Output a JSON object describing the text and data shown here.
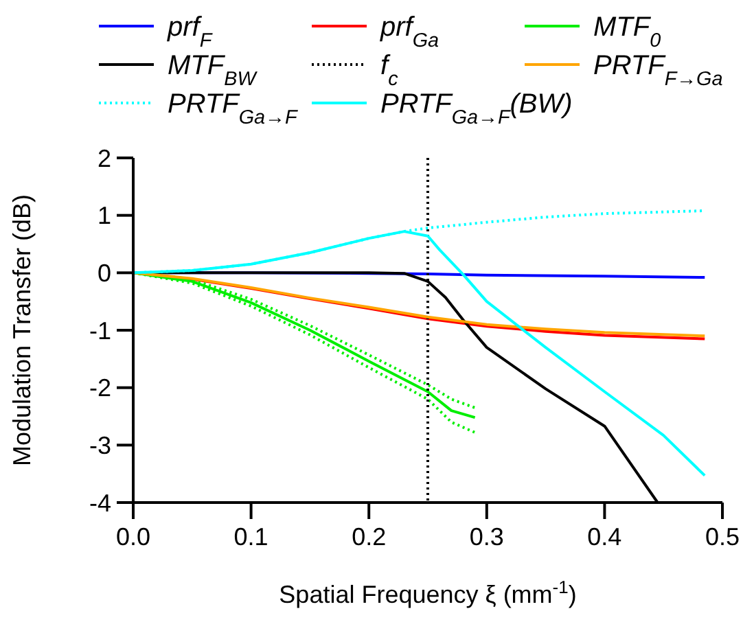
{
  "chart_data": {
    "type": "line",
    "xlabel": "Spatial Frequency ξ (mm$^{-1}$)",
    "ylabel": "Modulation Transfer (dB)",
    "xlim": [
      0,
      0.5
    ],
    "ylim": [
      -4,
      2
    ],
    "xticks": [
      {
        "value": 0,
        "label": "0.0"
      },
      0.1,
      0.2,
      0.3,
      0.4,
      0.5
    ],
    "yticks": [
      -4,
      -3,
      -2,
      -1,
      0,
      1,
      2
    ],
    "legend": "top",
    "grid": false,
    "series": [
      {
        "name": "prf$_{F}$",
        "color": "#0000ff",
        "x": [
          0,
          0.1,
          0.2,
          0.25,
          0.3,
          0.4,
          0.485
        ],
        "values": [
          0,
          0,
          -0.01,
          -0.02,
          -0.04,
          -0.06,
          -0.08
        ]
      },
      {
        "name": "prf$_{Ga}$",
        "color": "#ff0000",
        "x": [
          0,
          0.05,
          0.1,
          0.15,
          0.2,
          0.25,
          0.3,
          0.35,
          0.4,
          0.485
        ],
        "values": [
          0,
          -0.11,
          -0.27,
          -0.45,
          -0.62,
          -0.8,
          -0.93,
          -1.02,
          -1.09,
          -1.15
        ]
      },
      {
        "name": "MTF$_{0}$",
        "color": "#00ee00",
        "x": [
          0,
          0.05,
          0.1,
          0.15,
          0.2,
          0.25,
          0.27,
          0.29
        ],
        "values": [
          0,
          -0.15,
          -0.52,
          -1.0,
          -1.54,
          -2.07,
          -2.4,
          -2.52
        ]
      },
      {
        "color": "#00ee00",
        "line_style": "dotted",
        "x": [
          0,
          0.05,
          0.1,
          0.15,
          0.2,
          0.25,
          0.27,
          0.29
        ],
        "values": [
          0,
          -0.18,
          -0.58,
          -1.08,
          -1.65,
          -2.2,
          -2.6,
          -2.78
        ]
      },
      {
        "color": "#00ee00",
        "line_style": "dotted",
        "x": [
          0,
          0.05,
          0.1,
          0.15,
          0.2,
          0.25,
          0.27,
          0.29
        ],
        "values": [
          0,
          -0.12,
          -0.46,
          -0.92,
          -1.43,
          -1.95,
          -2.2,
          -2.35
        ]
      },
      {
        "name": "MTF$_{BW}$",
        "color": "#000000",
        "x": [
          0,
          0.1,
          0.2,
          0.23,
          0.25,
          0.265,
          0.28,
          0.3,
          0.35,
          0.4,
          0.445
        ],
        "values": [
          0,
          0,
          0,
          -0.01,
          -0.15,
          -0.43,
          -0.82,
          -1.3,
          -2.02,
          -2.67,
          -4
        ]
      },
      {
        "name": "f$_{c}$",
        "color": "#000000",
        "line_style": "dotted",
        "x": [
          0.25,
          0.25
        ],
        "values": [
          2,
          -4
        ]
      },
      {
        "name": "PRTF$_{F→Ga}$",
        "color": "#ffa500",
        "x": [
          0,
          0.05,
          0.1,
          0.15,
          0.2,
          0.25,
          0.3,
          0.35,
          0.4,
          0.485
        ],
        "values": [
          0,
          -0.1,
          -0.26,
          -0.44,
          -0.6,
          -0.77,
          -0.9,
          -0.98,
          -1.04,
          -1.1
        ]
      },
      {
        "name": "PRTF$_{Ga→F}$",
        "color": "#00ffff",
        "line_style": "dotted",
        "x": [
          0,
          0.05,
          0.1,
          0.15,
          0.2,
          0.23,
          0.25,
          0.3,
          0.35,
          0.4,
          0.485
        ],
        "values": [
          0,
          0.04,
          0.15,
          0.35,
          0.6,
          0.72,
          0.78,
          0.88,
          0.97,
          1.03,
          1.08
        ]
      },
      {
        "name": "PRTF$_{Ga→F}$(BW)",
        "color": "#00ffff",
        "x": [
          0,
          0.05,
          0.1,
          0.15,
          0.2,
          0.23,
          0.25,
          0.26,
          0.28,
          0.3,
          0.35,
          0.4,
          0.45,
          0.485
        ],
        "values": [
          0,
          0.04,
          0.15,
          0.35,
          0.6,
          0.72,
          0.64,
          0.4,
          -0.03,
          -0.5,
          -1.3,
          -2.07,
          -2.83,
          -3.53
        ]
      }
    ]
  }
}
